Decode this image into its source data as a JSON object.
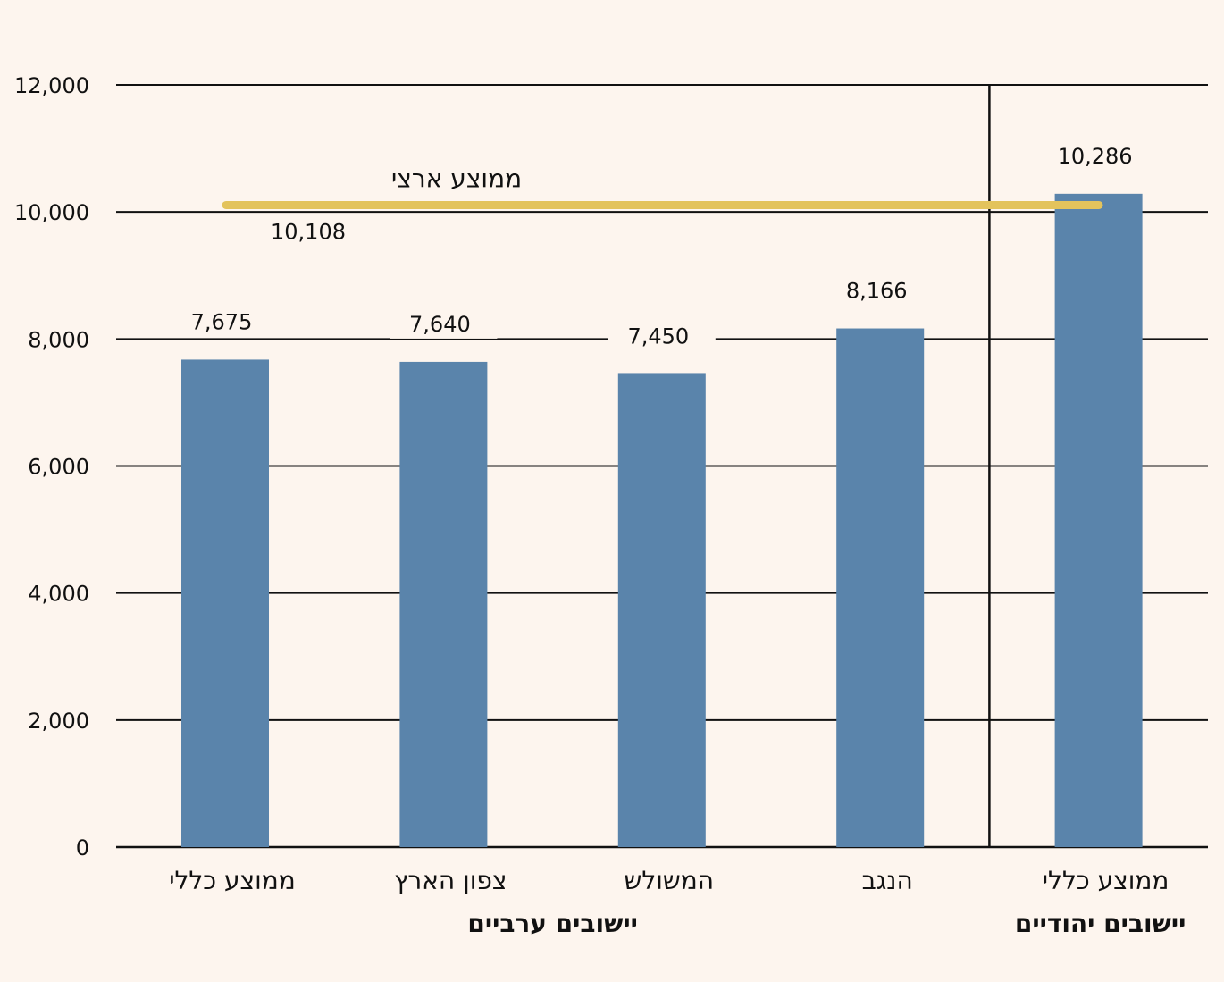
{
  "chart_data": {
    "type": "bar",
    "categories": [
      "ממוצע כללי",
      "צפון הארץ",
      "המשולש",
      "הנגב",
      "ממוצע כללי"
    ],
    "values": [
      7675,
      7640,
      7450,
      8166,
      10286
    ],
    "value_labels": [
      "7,675",
      "7,640",
      "7,450",
      "8,166",
      "10,286"
    ],
    "groups": [
      {
        "label": "יישובים ערביים",
        "category_indices": [
          0,
          1,
          2,
          3
        ]
      },
      {
        "label": "יישובים יהודיים",
        "category_indices": [
          4
        ]
      }
    ],
    "reference_line": {
      "label": "ממוצע ארצי",
      "value": 10108,
      "value_label": "10,108",
      "color": "#e3c35c"
    },
    "ylim": [
      0,
      12000
    ],
    "yticks": [
      0,
      2000,
      4000,
      6000,
      8000,
      10000,
      12000
    ],
    "ytick_labels": [
      "0",
      "2,000",
      "4,000",
      "6,000",
      "8,000",
      "10,000",
      "12,000"
    ],
    "grid": true,
    "bar_color": "#5a84ab",
    "background": "#fdf5ee",
    "title": "",
    "xlabel": "",
    "ylabel": ""
  }
}
